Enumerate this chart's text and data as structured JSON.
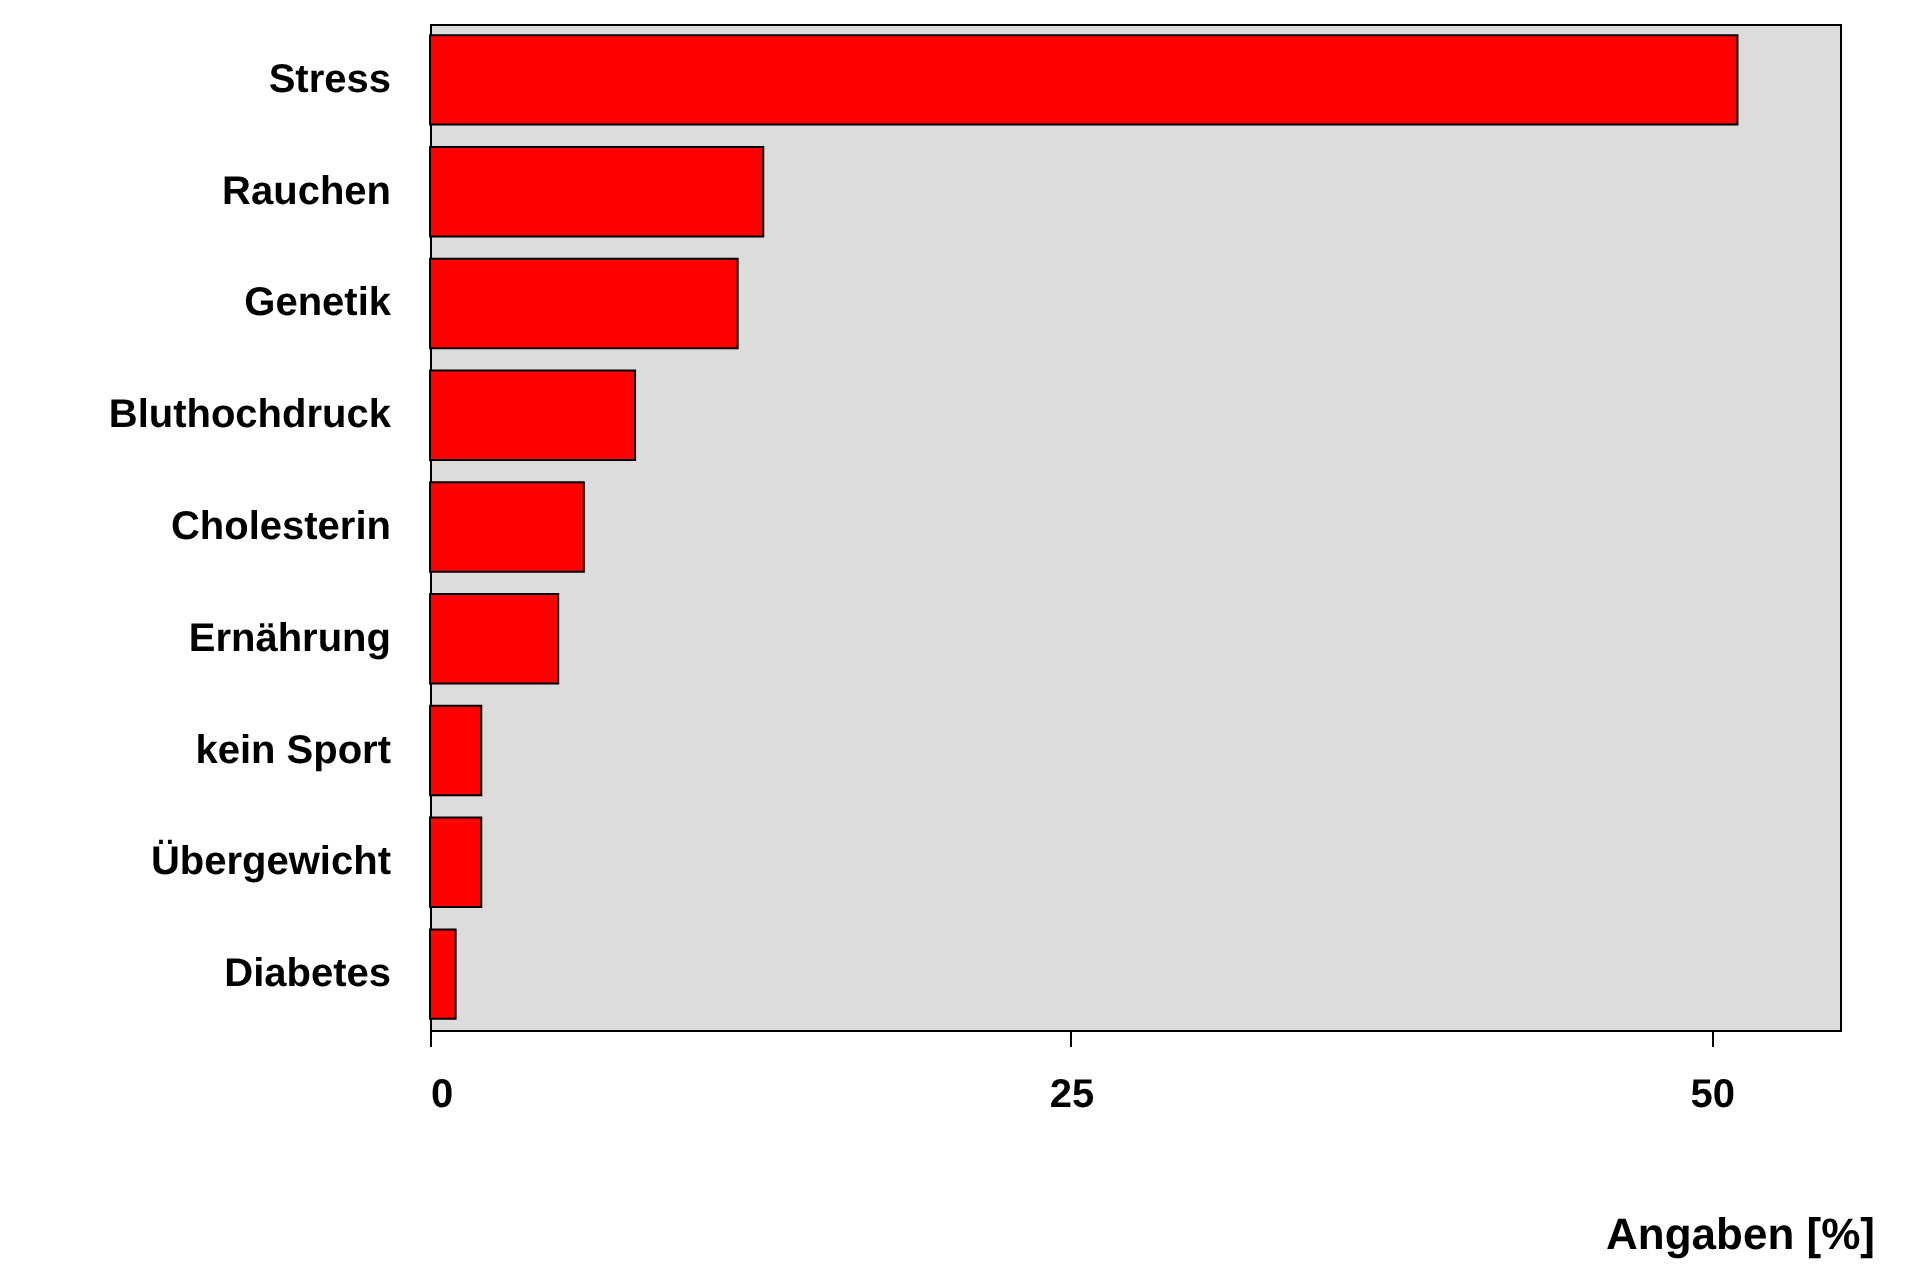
{
  "chart_data": {
    "type": "bar",
    "orientation": "horizontal",
    "xlabel": "Angaben [%]",
    "categories": [
      "Stress",
      "Rauchen",
      "Genetik",
      "Bluthochdruck",
      "Cholesterin",
      "Ernährung",
      "kein Sport",
      "Übergewicht",
      "Diabetes"
    ],
    "values": [
      51,
      13,
      12,
      8,
      6,
      5,
      2,
      2,
      1
    ],
    "color": "#ff0000",
    "xlim": [
      0,
      55
    ],
    "xticks": [
      0,
      25,
      50
    ],
    "grid": false
  }
}
